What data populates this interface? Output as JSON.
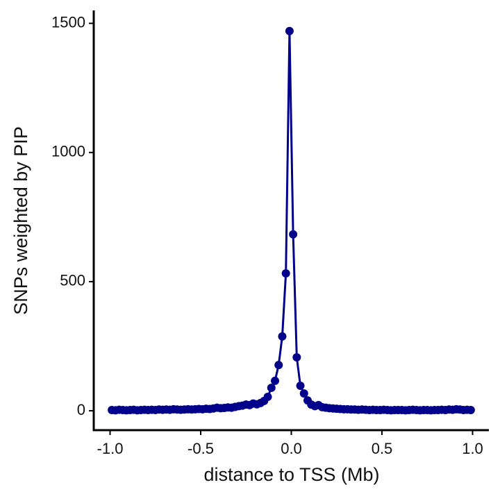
{
  "chart_data": {
    "type": "line",
    "xlabel": "distance to TSS (Mb)",
    "ylabel": "SNPs weighted by PIP",
    "x": [
      -0.99,
      -0.97,
      -0.95,
      -0.93,
      -0.91,
      -0.89,
      -0.87,
      -0.85,
      -0.83,
      -0.81,
      -0.79,
      -0.77,
      -0.75,
      -0.73,
      -0.71,
      -0.69,
      -0.67,
      -0.65,
      -0.63,
      -0.61,
      -0.59,
      -0.57,
      -0.55,
      -0.53,
      -0.51,
      -0.49,
      -0.47,
      -0.45,
      -0.43,
      -0.41,
      -0.39,
      -0.37,
      -0.35,
      -0.33,
      -0.31,
      -0.29,
      -0.27,
      -0.25,
      -0.23,
      -0.21,
      -0.19,
      -0.17,
      -0.15,
      -0.13,
      -0.11,
      -0.09,
      -0.07,
      -0.05,
      -0.03,
      -0.01,
      0.01,
      0.03,
      0.05,
      0.07,
      0.09,
      0.11,
      0.13,
      0.15,
      0.17,
      0.19,
      0.21,
      0.23,
      0.25,
      0.27,
      0.29,
      0.31,
      0.33,
      0.35,
      0.37,
      0.39,
      0.41,
      0.43,
      0.45,
      0.47,
      0.49,
      0.51,
      0.53,
      0.55,
      0.57,
      0.59,
      0.61,
      0.63,
      0.65,
      0.67,
      0.69,
      0.71,
      0.73,
      0.75,
      0.77,
      0.79,
      0.81,
      0.83,
      0.85,
      0.87,
      0.89,
      0.91,
      0.93,
      0.95,
      0.97,
      0.99
    ],
    "series": [
      {
        "name": "SNPs",
        "color": "#00008b",
        "values": [
          3,
          2,
          4,
          3,
          2,
          3,
          4,
          2,
          3,
          4,
          3,
          4,
          3,
          5,
          4,
          5,
          4,
          6,
          5,
          4,
          5,
          6,
          5,
          6,
          7,
          6,
          8,
          7,
          9,
          12,
          10,
          11,
          13,
          12,
          15,
          18,
          20,
          24,
          22,
          28,
          25,
          30,
          38,
          54,
          89,
          116,
          177,
          288,
          532,
          1470,
          683,
          207,
          97,
          67,
          40,
          24,
          18,
          22,
          14,
          12,
          10,
          9,
          8,
          7,
          6,
          6,
          5,
          5,
          4,
          5,
          4,
          3,
          4,
          3,
          3,
          4,
          3,
          2,
          3,
          3,
          3,
          2,
          3,
          4,
          3,
          2,
          3,
          3,
          2,
          3,
          3,
          4,
          3,
          5,
          4,
          6,
          5,
          3,
          4,
          3
        ]
      }
    ],
    "xlim": [
      -1.09,
      1.09
    ],
    "ylim": [
      -75,
      1550
    ],
    "xticks": [
      {
        "value": -1.0,
        "label": "-1.0"
      },
      -0.5,
      {
        "value": 0.0,
        "label": "0.0"
      },
      0.5,
      {
        "value": 1.0,
        "label": "1.0"
      }
    ],
    "yticks": [
      0,
      500,
      1000,
      1500
    ]
  }
}
